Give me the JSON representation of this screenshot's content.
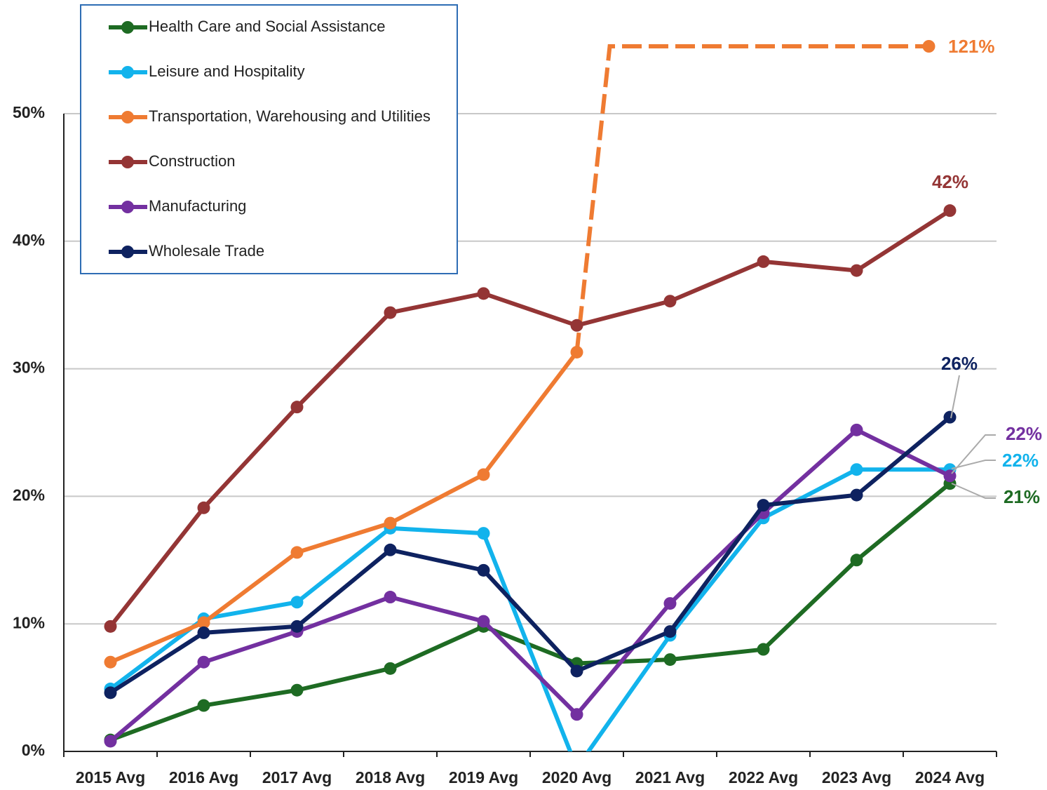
{
  "chart_data": {
    "type": "line",
    "categories": [
      "2015 Avg",
      "2016 Avg",
      "2017 Avg",
      "2018 Avg",
      "2019 Avg",
      "2020 Avg",
      "2021 Avg",
      "2022 Avg",
      "2023 Avg",
      "2024 Avg"
    ],
    "ylim": [
      0,
      50
    ],
    "yticks": [
      {
        "value": 0,
        "label": "0%"
      },
      {
        "value": 10,
        "label": "10%"
      },
      {
        "value": 20,
        "label": "20%"
      },
      {
        "value": 30,
        "label": "30%"
      },
      {
        "value": 40,
        "label": "40%"
      },
      {
        "value": 50,
        "label": "50%"
      }
    ],
    "grid": true,
    "legend": "upper left",
    "series": [
      {
        "name": "Health Care and Social Assistance",
        "color": "#1e6b23",
        "values": [
          0.9,
          3.6,
          4.8,
          6.5,
          9.8,
          6.9,
          7.2,
          8.0,
          15.0,
          21.0
        ],
        "value_labels": [
          null,
          null,
          null,
          null,
          null,
          null,
          null,
          null,
          null,
          "21%"
        ]
      },
      {
        "name": "Leisure and Hospitality",
        "color": "#12b3ec",
        "values": [
          4.9,
          10.4,
          11.7,
          17.5,
          17.1,
          -1.3,
          9.1,
          18.3,
          22.1,
          22.1
        ],
        "value_labels": [
          null,
          null,
          null,
          null,
          null,
          null,
          null,
          null,
          null,
          "22%"
        ]
      },
      {
        "name": "Transportation, Warehousing and Utilities",
        "color": "#ef7b32",
        "values": [
          7.0,
          10.1,
          15.6,
          17.9,
          21.7,
          31.3,
          null,
          null,
          null,
          121
        ],
        "value_labels": [
          null,
          null,
          null,
          null,
          null,
          null,
          null,
          null,
          null,
          "121%"
        ]
      },
      {
        "name": "Construction",
        "color": "#943535",
        "values": [
          9.8,
          19.1,
          27.0,
          34.4,
          35.9,
          33.4,
          35.3,
          38.4,
          37.7,
          42.4
        ],
        "value_labels": [
          null,
          null,
          null,
          null,
          null,
          null,
          null,
          null,
          null,
          "42%"
        ]
      },
      {
        "name": "Manufacturing",
        "color": "#7330a0",
        "values": [
          0.8,
          7.0,
          9.4,
          12.1,
          10.2,
          2.9,
          11.6,
          18.7,
          25.2,
          21.6
        ],
        "value_labels": [
          null,
          null,
          null,
          null,
          null,
          null,
          null,
          null,
          null,
          "22%"
        ]
      },
      {
        "name": "Wholesale Trade",
        "color": "#0e2260",
        "values": [
          4.6,
          9.3,
          9.8,
          15.8,
          14.2,
          6.3,
          9.4,
          19.3,
          20.1,
          26.2
        ],
        "value_labels": [
          null,
          null,
          null,
          null,
          null,
          null,
          null,
          null,
          null,
          "26%"
        ]
      }
    ]
  }
}
